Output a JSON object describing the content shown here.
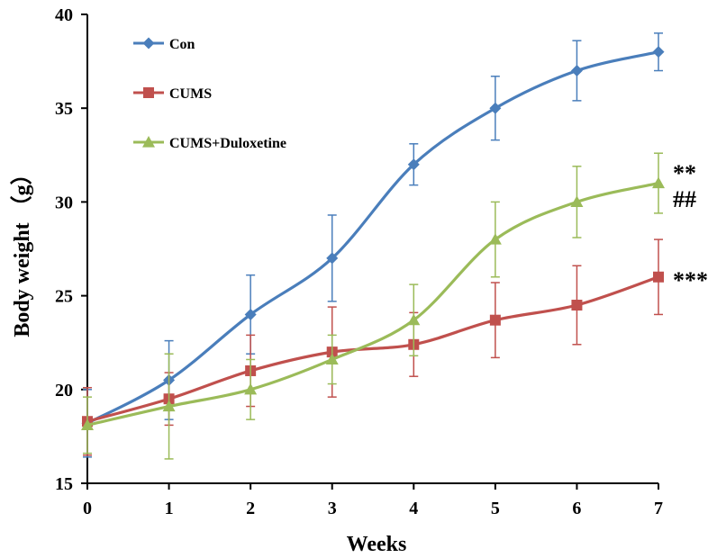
{
  "chart_data": {
    "type": "line",
    "xlabel": "Weeks",
    "ylabel": "Body weight （g）",
    "x": [
      0,
      1,
      2,
      3,
      4,
      5,
      6,
      7
    ],
    "x_ticks": [
      "0",
      "1",
      "2",
      "3",
      "4",
      "5",
      "6",
      "7"
    ],
    "xlim": [
      0,
      7
    ],
    "ylim": [
      15,
      40
    ],
    "y_ticks": [
      "15",
      "20",
      "25",
      "30",
      "35",
      "40"
    ],
    "y_tick_values": [
      15,
      20,
      25,
      30,
      35,
      40
    ],
    "grid": false,
    "legend_position": "top-left",
    "series": [
      {
        "name": "Con",
        "color": "#4a7ebb",
        "marker": "diamond",
        "values": [
          18.2,
          20.5,
          24.0,
          27.0,
          32.0,
          35.0,
          37.0,
          38.0
        ],
        "errors": [
          1.8,
          2.1,
          2.1,
          2.3,
          1.1,
          1.7,
          1.6,
          1.0
        ]
      },
      {
        "name": "CUMS",
        "color": "#c0504d",
        "marker": "square",
        "values": [
          18.3,
          19.5,
          21.0,
          22.0,
          22.4,
          23.7,
          24.5,
          26.0
        ],
        "errors": [
          1.8,
          1.4,
          1.9,
          2.4,
          1.7,
          2.0,
          2.1,
          2.0
        ]
      },
      {
        "name": "CUMS+Duloxetine",
        "color": "#9bbb59",
        "marker": "triangle",
        "values": [
          18.1,
          19.1,
          20.0,
          21.6,
          23.7,
          28.0,
          30.0,
          31.0
        ],
        "errors": [
          1.5,
          2.8,
          1.6,
          1.3,
          1.9,
          2.0,
          1.9,
          1.6
        ]
      }
    ],
    "annotations": [
      {
        "text": "**",
        "series": "CUMS+Duloxetine",
        "x": 7,
        "y": 31.7
      },
      {
        "text": "##",
        "series": "CUMS+Duloxetine",
        "x": 7,
        "y": 30.3
      },
      {
        "text": "***",
        "series": "CUMS",
        "x": 7,
        "y": 26.0
      }
    ]
  }
}
